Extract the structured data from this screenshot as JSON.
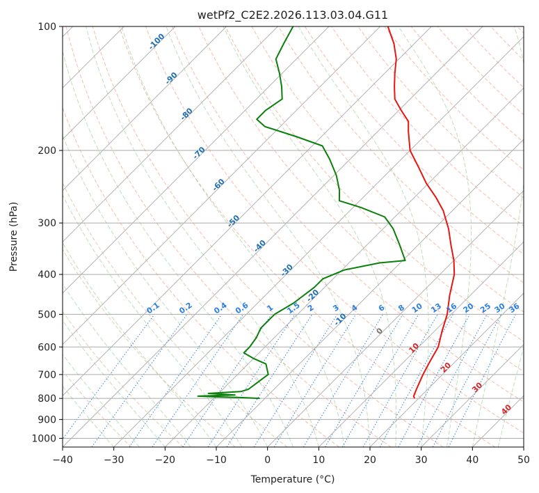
{
  "chart_data": {
    "type": "line",
    "title": "wetPf2_C2E2.2026.113.03.04.G11",
    "xlabel": "Temperature (°C)",
    "ylabel": "Pressure (hPa)",
    "xlim": [
      -40,
      50
    ],
    "ylim": [
      1050,
      100
    ],
    "y_scale": "log",
    "x_ticks": [
      -40,
      -30,
      -20,
      -10,
      0,
      10,
      20,
      30,
      40,
      50
    ],
    "y_ticks": [
      100,
      200,
      300,
      400,
      500,
      600,
      700,
      800,
      900,
      1000
    ],
    "grid": true,
    "skew_degrees": 45,
    "isotherm_labels": [
      "-100",
      "-90",
      "-80",
      "-70",
      "-60",
      "-50",
      "-40",
      "-30",
      "-20",
      "-10"
    ],
    "mixing_ratio_labels": [
      "0.1",
      "0.2",
      "0.4",
      "0.6",
      "1",
      "1.5",
      "2",
      "3",
      "4",
      "6",
      "8",
      "10",
      "13",
      "16",
      "20",
      "25",
      "30",
      "36"
    ],
    "mixing_ratio_values": [
      0.1,
      0.2,
      0.4,
      0.6,
      1,
      1.5,
      2,
      3,
      4,
      6,
      8,
      10,
      13,
      16,
      20,
      25,
      30,
      36
    ],
    "positive_isotherm_labels": [
      "0",
      "10",
      "20",
      "30",
      "40"
    ],
    "series": [
      {
        "color": "#e8140f",
        "points": [
          {
            "p": 800,
            "t": 19.2
          },
          {
            "p": 790,
            "t": 18.6
          },
          {
            "p": 760,
            "t": 17.8
          },
          {
            "p": 700,
            "t": 16.2
          },
          {
            "p": 650,
            "t": 15.0
          },
          {
            "p": 600,
            "t": 13.8
          },
          {
            "p": 550,
            "t": 11.5
          },
          {
            "p": 500,
            "t": 9.2
          },
          {
            "p": 450,
            "t": 6.0
          },
          {
            "p": 400,
            "t": 2.8
          },
          {
            "p": 370,
            "t": 0.0
          },
          {
            "p": 340,
            "t": -3.5
          },
          {
            "p": 310,
            "t": -7.2
          },
          {
            "p": 280,
            "t": -11.8
          },
          {
            "p": 260,
            "t": -15.8
          },
          {
            "p": 240,
            "t": -20.5
          },
          {
            "p": 220,
            "t": -25.0
          },
          {
            "p": 200,
            "t": -30.0
          },
          {
            "p": 180,
            "t": -34.0
          },
          {
            "p": 170,
            "t": -36.0
          },
          {
            "p": 160,
            "t": -39.5
          },
          {
            "p": 150,
            "t": -43.0
          },
          {
            "p": 140,
            "t": -45.5
          },
          {
            "p": 130,
            "t": -48.0
          },
          {
            "p": 120,
            "t": -50.5
          },
          {
            "p": 110,
            "t": -54.0
          },
          {
            "p": 100,
            "t": -58.5
          }
        ]
      },
      {
        "color": "#0a7f0a",
        "points": [
          {
            "p": 800,
            "t": -11.0
          },
          {
            "p": 796,
            "t": -15.0
          },
          {
            "p": 793,
            "t": -20.0
          },
          {
            "p": 790,
            "t": -23.5
          },
          {
            "p": 785,
            "t": -16.5
          },
          {
            "p": 778,
            "t": -22.0
          },
          {
            "p": 770,
            "t": -16.0
          },
          {
            "p": 760,
            "t": -15.0
          },
          {
            "p": 730,
            "t": -14.5
          },
          {
            "p": 700,
            "t": -14.0
          },
          {
            "p": 660,
            "t": -16.5
          },
          {
            "p": 640,
            "t": -20.0
          },
          {
            "p": 620,
            "t": -23.0
          },
          {
            "p": 600,
            "t": -23.0
          },
          {
            "p": 570,
            "t": -23.5
          },
          {
            "p": 540,
            "t": -24.5
          },
          {
            "p": 500,
            "t": -24.5
          },
          {
            "p": 470,
            "t": -23.0
          },
          {
            "p": 430,
            "t": -22.0
          },
          {
            "p": 410,
            "t": -22.0
          },
          {
            "p": 390,
            "t": -19.5
          },
          {
            "p": 375,
            "t": -14.0
          },
          {
            "p": 370,
            "t": -9.5
          },
          {
            "p": 340,
            "t": -13.5
          },
          {
            "p": 310,
            "t": -18.0
          },
          {
            "p": 290,
            "t": -22.0
          },
          {
            "p": 275,
            "t": -28.5
          },
          {
            "p": 265,
            "t": -34.0
          },
          {
            "p": 250,
            "t": -36.0
          },
          {
            "p": 230,
            "t": -39.5
          },
          {
            "p": 210,
            "t": -44.0
          },
          {
            "p": 195,
            "t": -48.0
          },
          {
            "p": 185,
            "t": -55.0
          },
          {
            "p": 175,
            "t": -63.0
          },
          {
            "p": 168,
            "t": -66.0
          },
          {
            "p": 160,
            "t": -66.0
          },
          {
            "p": 150,
            "t": -65.0
          },
          {
            "p": 140,
            "t": -67.5
          },
          {
            "p": 130,
            "t": -70.5
          },
          {
            "p": 120,
            "t": -74.0
          },
          {
            "p": 110,
            "t": -75.5
          },
          {
            "p": 100,
            "t": -77.0
          }
        ]
      }
    ]
  }
}
